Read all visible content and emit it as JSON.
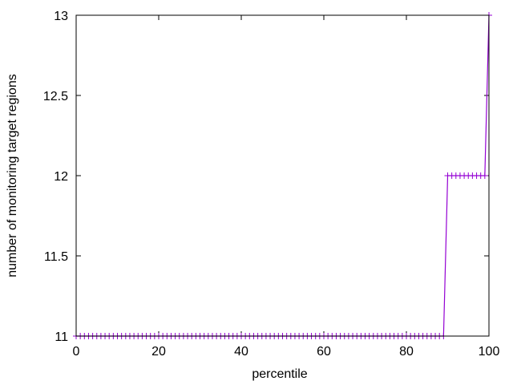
{
  "chart_data": {
    "type": "line",
    "title": "",
    "xlabel": "percentile",
    "ylabel": "number of monitoring target regions",
    "xlim": [
      0,
      100
    ],
    "ylim": [
      11,
      13
    ],
    "xticks": [
      0,
      20,
      40,
      60,
      80,
      100
    ],
    "yticks": [
      11,
      11.5,
      12,
      12.5,
      13
    ],
    "xtick_labels": [
      "0",
      "20",
      "40",
      "60",
      "80",
      "100"
    ],
    "ytick_labels": [
      "11",
      "11.5",
      "12",
      "12.5",
      "13"
    ],
    "grid": false,
    "legend": "none",
    "marker": "plus",
    "series": [
      {
        "color": "#9400d3",
        "x": [
          0,
          1,
          2,
          3,
          4,
          5,
          6,
          7,
          8,
          9,
          10,
          11,
          12,
          13,
          14,
          15,
          16,
          17,
          18,
          19,
          20,
          21,
          22,
          23,
          24,
          25,
          26,
          27,
          28,
          29,
          30,
          31,
          32,
          33,
          34,
          35,
          36,
          37,
          38,
          39,
          40,
          41,
          42,
          43,
          44,
          45,
          46,
          47,
          48,
          49,
          50,
          51,
          52,
          53,
          54,
          55,
          56,
          57,
          58,
          59,
          60,
          61,
          62,
          63,
          64,
          65,
          66,
          67,
          68,
          69,
          70,
          71,
          72,
          73,
          74,
          75,
          76,
          77,
          78,
          79,
          80,
          81,
          82,
          83,
          84,
          85,
          86,
          87,
          88,
          89,
          90,
          91,
          92,
          93,
          94,
          95,
          96,
          97,
          98,
          99,
          100
        ],
        "y": [
          11,
          11,
          11,
          11,
          11,
          11,
          11,
          11,
          11,
          11,
          11,
          11,
          11,
          11,
          11,
          11,
          11,
          11,
          11,
          11,
          11,
          11,
          11,
          11,
          11,
          11,
          11,
          11,
          11,
          11,
          11,
          11,
          11,
          11,
          11,
          11,
          11,
          11,
          11,
          11,
          11,
          11,
          11,
          11,
          11,
          11,
          11,
          11,
          11,
          11,
          11,
          11,
          11,
          11,
          11,
          11,
          11,
          11,
          11,
          11,
          11,
          11,
          11,
          11,
          11,
          11,
          11,
          11,
          11,
          11,
          11,
          11,
          11,
          11,
          11,
          11,
          11,
          11,
          11,
          11,
          11,
          11,
          11,
          11,
          11,
          11,
          11,
          11,
          11,
          11,
          12,
          12,
          12,
          12,
          12,
          12,
          12,
          12,
          12,
          12,
          13
        ]
      }
    ]
  }
}
